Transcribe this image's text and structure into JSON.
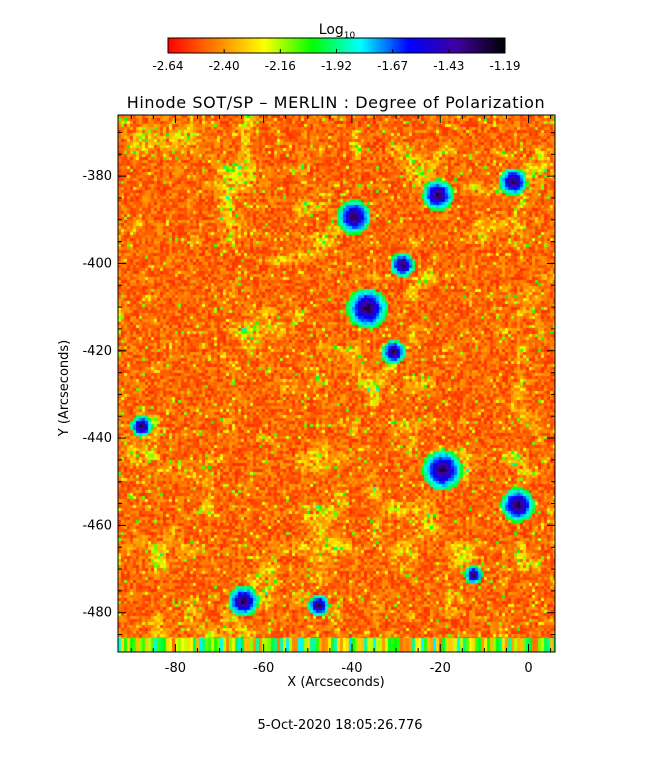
{
  "colorbar": {
    "label": "Log",
    "label_subscript": "10",
    "ticks": [
      "-2.64",
      "-2.40",
      "-2.16",
      "-1.92",
      "-1.67",
      "-1.43",
      "-1.19"
    ],
    "stops": [
      "#ff0000",
      "#ff8000",
      "#ffff00",
      "#00ff00",
      "#00ffff",
      "#0000ff",
      "#4000a0",
      "#000000"
    ]
  },
  "chart_data": {
    "type": "heatmap",
    "title": "Hinode SOT/SP – MERLIN : Degree of Polarization",
    "xlabel": "X (Arcseconds)",
    "ylabel": "Y (Arcseconds)",
    "xlim": [
      -93,
      6
    ],
    "ylim": [
      -489,
      -366
    ],
    "xticks": [
      -80,
      -60,
      -40,
      -20,
      0
    ],
    "yticks": [
      -380,
      -400,
      -420,
      -440,
      -460,
      -480
    ],
    "value_range": [
      -2.64,
      -1.19
    ],
    "value_scale": "log10",
    "grid": false,
    "colorbar_position": "top"
  },
  "footer": {
    "timestamp": "5-Oct-2020 18:05:26.776"
  }
}
